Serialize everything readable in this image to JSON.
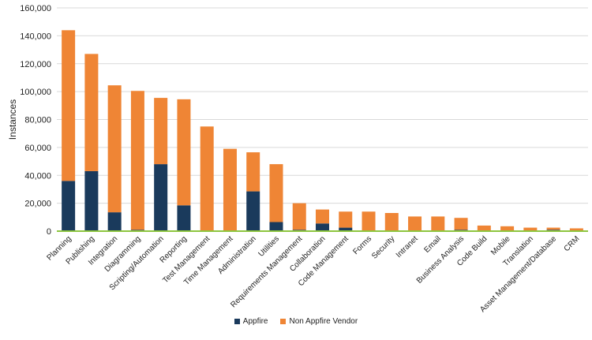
{
  "chart_data": {
    "type": "bar",
    "stacked": true,
    "ylabel": "Instances",
    "ylim": [
      0,
      160000
    ],
    "yticks": [
      "0",
      "20,000",
      "40,000",
      "60,000",
      "80,000",
      "100,000",
      "120,000",
      "140,000",
      "160,000"
    ],
    "grid": true,
    "legend_position": "bottom",
    "categories": [
      "Planning",
      "Publishing",
      "Integration",
      "Diagramming",
      "Scripting/Automation",
      "Reporting",
      "Test Management",
      "Time Management",
      "Administration",
      "Utilities",
      "Requirements Management",
      "Collaboration",
      "Code Management",
      "Forms",
      "Security",
      "Intranet",
      "Email",
      "Business Analysis",
      "Code Build",
      "Mobile",
      "Translation",
      "Asset Management/Database",
      "CRM"
    ],
    "series": [
      {
        "name": "Appfire",
        "color": "#1a3a5c",
        "values": [
          36000,
          43000,
          13500,
          1000,
          48000,
          18500,
          0,
          0,
          28500,
          6500,
          1000,
          5500,
          2500,
          0,
          0,
          0,
          0,
          1000,
          0,
          0,
          0,
          1000,
          0
        ]
      },
      {
        "name": "Non Appfire Vendor",
        "color": "#ef8535",
        "values": [
          108000,
          84000,
          91000,
          99500,
          47500,
          76000,
          75000,
          59000,
          28000,
          41500,
          19000,
          10000,
          11500,
          14000,
          13000,
          10500,
          10500,
          8500,
          4000,
          3500,
          2500,
          1500,
          2000
        ]
      }
    ],
    "baseline_color": "#8dc63f"
  }
}
